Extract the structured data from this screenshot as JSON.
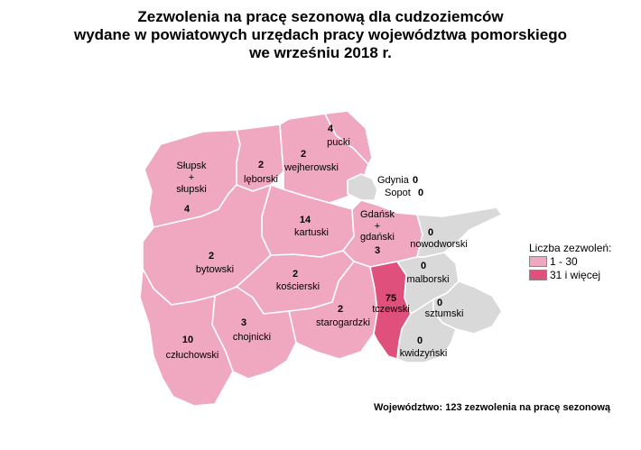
{
  "title": {
    "line1": "Zezwolenia na pracę sezonową dla cudzoziemców",
    "line2": "wydane w powiatowych urzędach pracy województwa pomorskiego",
    "line3": "we wrześniu 2018 r."
  },
  "colors": {
    "class_low": "#f0a8c0",
    "class_high": "#e0507c",
    "class_zero": "#d9d9d9",
    "border": "#ffffff"
  },
  "legend": {
    "title": "Liczba zezwoleń:",
    "items": [
      {
        "label": "1 - 30",
        "color": "#f0a8c0"
      },
      {
        "label": "31 i więcej",
        "color": "#e0507c"
      }
    ]
  },
  "districts": {
    "slupsk": {
      "name_line1": "Słupsk",
      "name_line2": "+",
      "name_line3": "słupski",
      "value": "4"
    },
    "leborski": {
      "name": "lęborski",
      "value": "2"
    },
    "wejherowski": {
      "name": "wejherowski",
      "value": "2"
    },
    "pucki": {
      "name": "pucki",
      "value": "4"
    },
    "gdynia": {
      "name": "Gdynia",
      "value": "0"
    },
    "sopot": {
      "name": "Sopot",
      "value": "0"
    },
    "gdansk": {
      "name_line1": "Gdańsk",
      "name_line2": "+",
      "name_line3": "gdański",
      "value": "3"
    },
    "kartuski": {
      "name": "kartuski",
      "value": "14"
    },
    "bytowski": {
      "name": "bytowski",
      "value": "2"
    },
    "koscierski": {
      "name": "kościerski",
      "value": "2"
    },
    "nowodworski": {
      "name": "nowodworski",
      "value": "0"
    },
    "malborski": {
      "name": "malborski",
      "value": "0"
    },
    "tczewski": {
      "name": "tczewski",
      "value": "75"
    },
    "sztumski": {
      "name": "sztumski",
      "value": "0"
    },
    "starogardzki": {
      "name": "starogardzki",
      "value": "2"
    },
    "chojnicki": {
      "name": "chojnicki",
      "value": "3"
    },
    "czluchowski": {
      "name": "człuchowski",
      "value": "10"
    },
    "kwidzynski": {
      "name": "kwidzyński",
      "value": "0"
    }
  },
  "footer": "Województwo: 123 zezwolenia na pracę sezonową"
}
